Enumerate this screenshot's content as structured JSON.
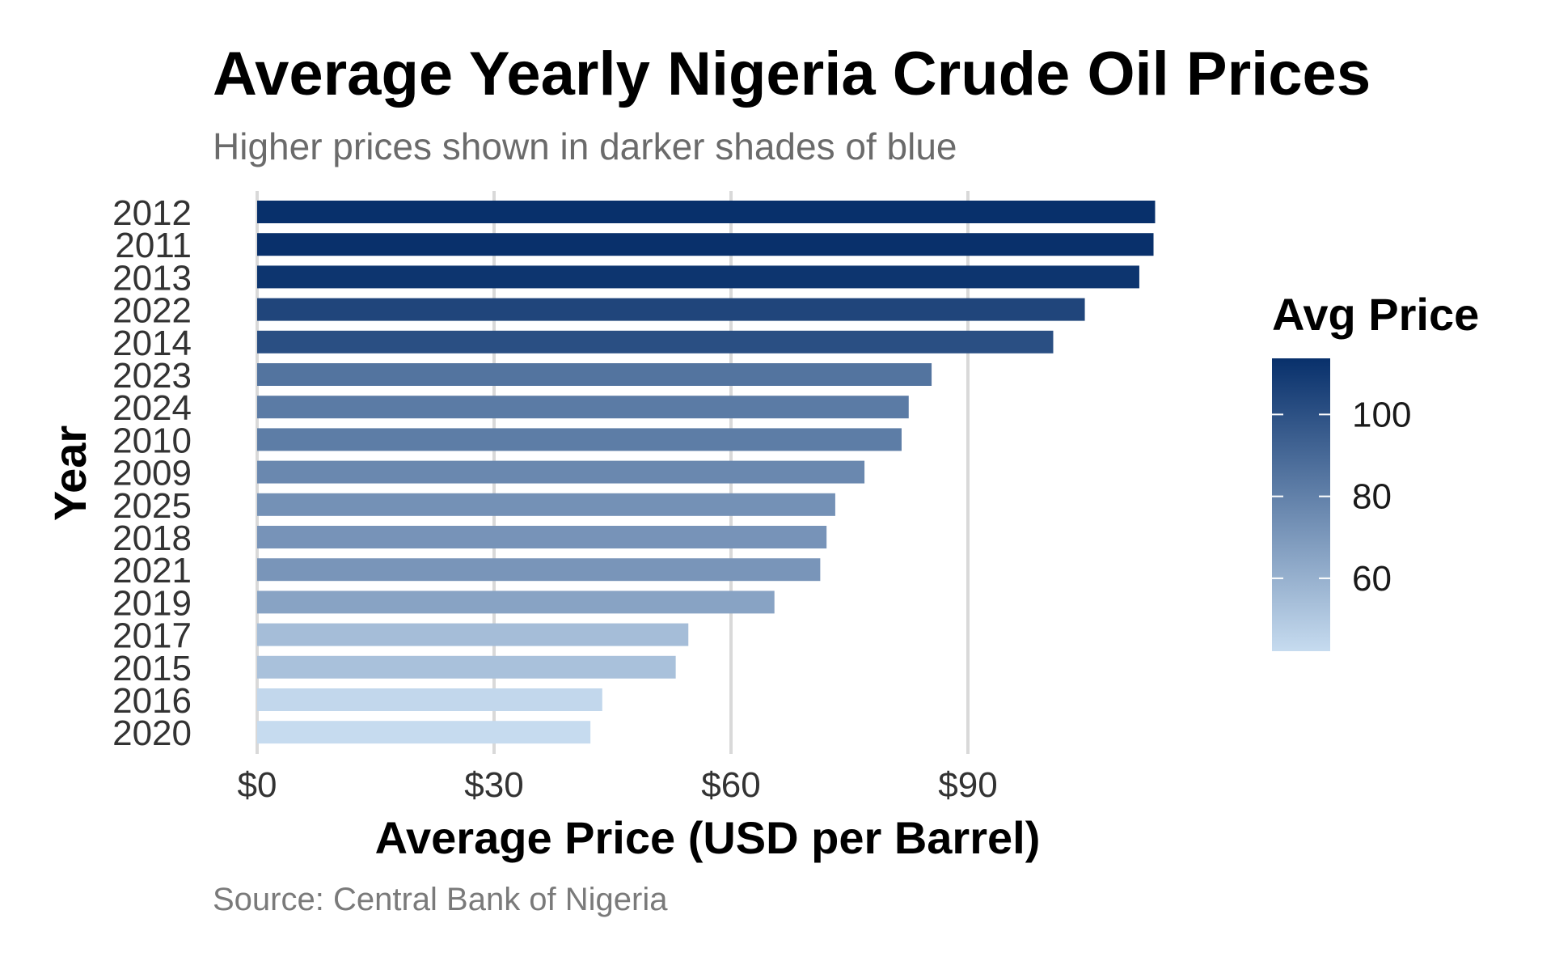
{
  "chart_data": {
    "type": "bar",
    "orientation": "horizontal",
    "title": "Average Yearly Nigeria Crude Oil Prices",
    "subtitle": "Higher prices shown in darker shades of blue",
    "caption": "Source: Central Bank of Nigeria",
    "xlabel": "Average Price (USD per Barrel)",
    "ylabel": "Year",
    "xlim": [
      0,
      115
    ],
    "x_ticks": [
      0,
      30,
      60,
      90
    ],
    "x_tick_labels": [
      "$0",
      "$30",
      "$60",
      "$90"
    ],
    "grid": "vertical major gridlines",
    "categories": [
      "2012",
      "2011",
      "2013",
      "2022",
      "2014",
      "2023",
      "2024",
      "2010",
      "2009",
      "2025",
      "2018",
      "2021",
      "2019",
      "2017",
      "2015",
      "2016",
      "2020"
    ],
    "values": [
      113.7,
      113.5,
      111.7,
      104.8,
      100.8,
      85.4,
      82.5,
      81.6,
      76.9,
      73.2,
      72.1,
      71.3,
      65.5,
      54.6,
      53.0,
      43.7,
      42.2
    ],
    "legend": {
      "title": "Avg Price",
      "placement": "right",
      "type": "continuous color scale",
      "ticks": [
        100,
        80,
        60
      ],
      "tick_labels": [
        "100",
        "80",
        "60"
      ],
      "range": [
        42.2,
        113.7
      ],
      "color_low": "#c6dbef",
      "color_high": "#08306b"
    }
  }
}
